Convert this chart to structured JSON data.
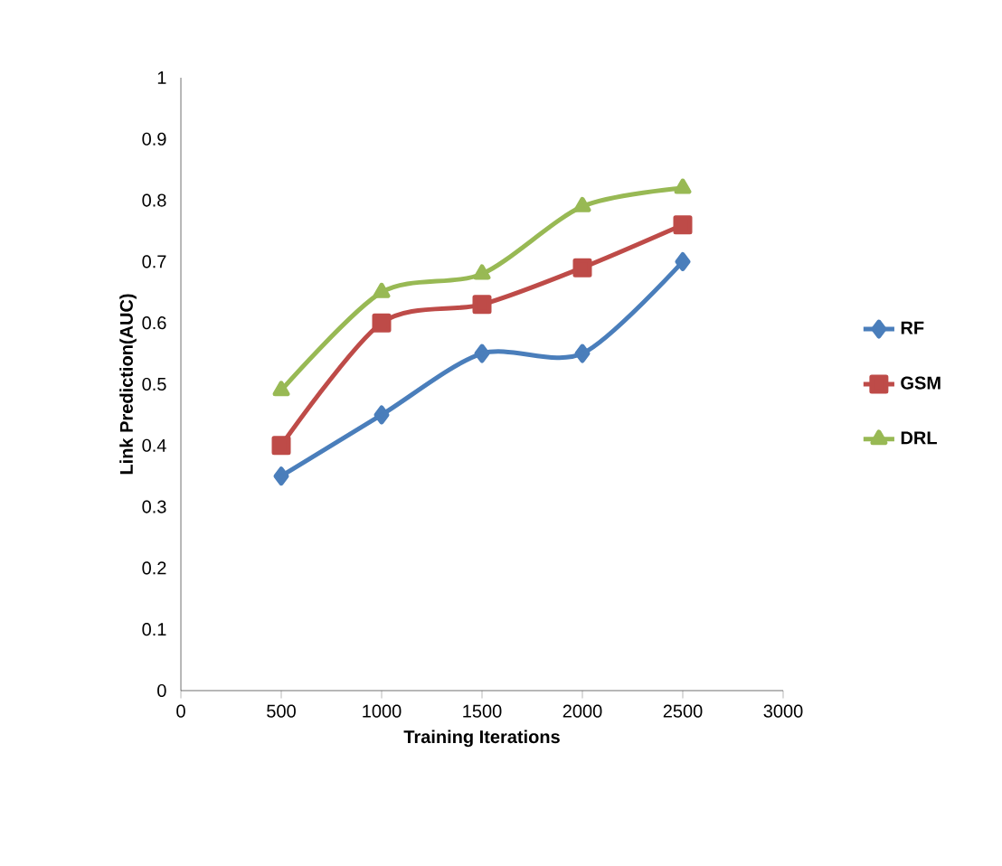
{
  "chart_data": {
    "type": "line",
    "xlabel": "Training Iterations",
    "ylabel": "Link Prediction(AUC)",
    "x": [
      500,
      1000,
      1500,
      2000,
      2500
    ],
    "series": [
      {
        "name": "RF",
        "color": "#4a7ebb",
        "marker": "diamond",
        "values": [
          0.35,
          0.45,
          0.55,
          0.55,
          0.7
        ]
      },
      {
        "name": "GSM",
        "color": "#be4b48",
        "marker": "square",
        "values": [
          0.4,
          0.6,
          0.63,
          0.69,
          0.76
        ]
      },
      {
        "name": "DRL",
        "color": "#98b954",
        "marker": "triangle",
        "values": [
          0.49,
          0.65,
          0.68,
          0.79,
          0.82
        ]
      }
    ],
    "xlim": [
      0,
      3000
    ],
    "ylim": [
      0,
      1
    ],
    "xticks": [
      0,
      500,
      1000,
      1500,
      2000,
      2500,
      3000
    ],
    "yticks": [
      0,
      0.1,
      0.2,
      0.3,
      0.4,
      0.5,
      0.6,
      0.7,
      0.8,
      0.9,
      1
    ],
    "line_style": "solid",
    "grid": false,
    "legend": "right"
  }
}
